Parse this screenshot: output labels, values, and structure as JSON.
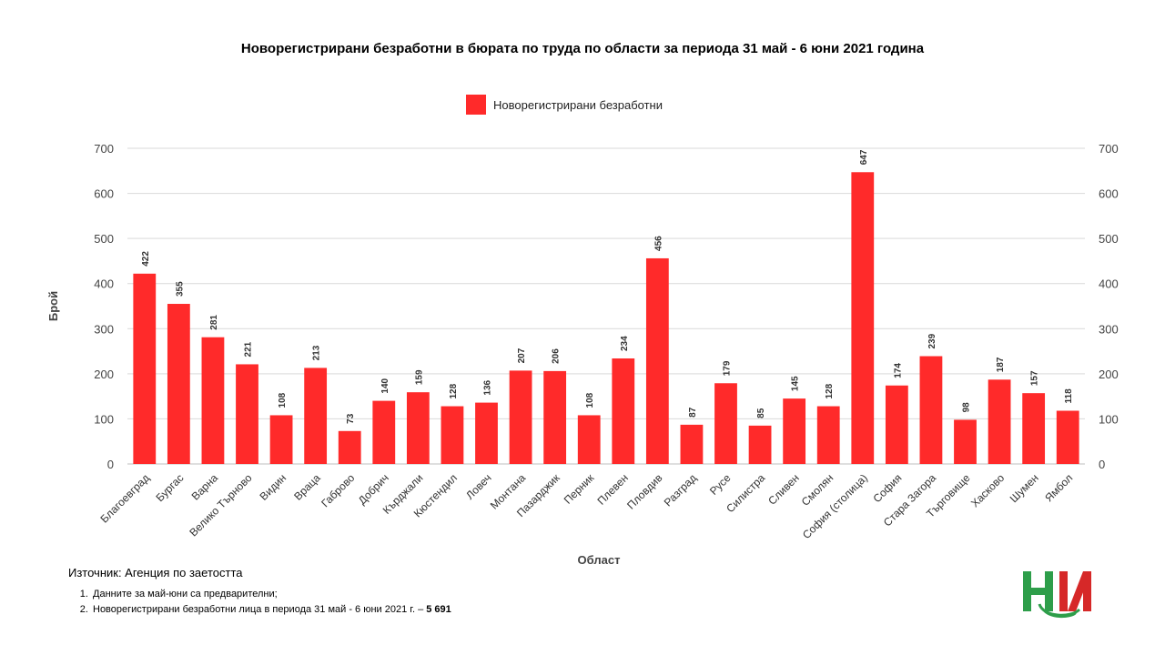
{
  "chart_data": {
    "type": "bar",
    "title": "Новорегистрирани безработни в бюрата по труда по области за периода 31 май - 6 юни 2021 година",
    "xlabel": "Област",
    "ylabel": "Брой",
    "ylim": [
      0,
      700
    ],
    "yticks": [
      "0",
      "100",
      "200",
      "300",
      "400",
      "500",
      "600",
      "700"
    ],
    "grid": true,
    "legend_position": "top-center",
    "bar_color": "#ff2a2a",
    "categories": [
      "Благоевград",
      "Бургас",
      "Варна",
      "Велико Търново",
      "Видин",
      "Враца",
      "Габрово",
      "Добрич",
      "Кърджали",
      "Кюстендил",
      "Ловеч",
      "Монтана",
      "Пазарджик",
      "Перник",
      "Плевен",
      "Пловдив",
      "Разград",
      "Русе",
      "Силистра",
      "Сливен",
      "Смолян",
      "София (столица)",
      "София",
      "Стара Загора",
      "Търговище",
      "Хасково",
      "Шумен",
      "Ямбол"
    ],
    "series": [
      {
        "name": "Новорегистрирани безработни",
        "values": [
          422,
          355,
          281,
          221,
          108,
          213,
          73,
          140,
          159,
          128,
          136,
          207,
          206,
          108,
          234,
          456,
          87,
          179,
          85,
          145,
          128,
          647,
          174,
          239,
          98,
          187,
          157,
          118
        ]
      }
    ]
  },
  "footer": {
    "source": "Източник: Агенция по заетостта",
    "note1": "Данните за май-юни са предварителни;",
    "note2_text": "Новорегистрирани безработни лица в периода 31 май - 6 юни 2021 г. –",
    "note2_total": "5 691"
  },
  "logo": {
    "icon": "nsi-logo-icon",
    "colors": [
      "#2e9e4a",
      "#d62828"
    ]
  }
}
